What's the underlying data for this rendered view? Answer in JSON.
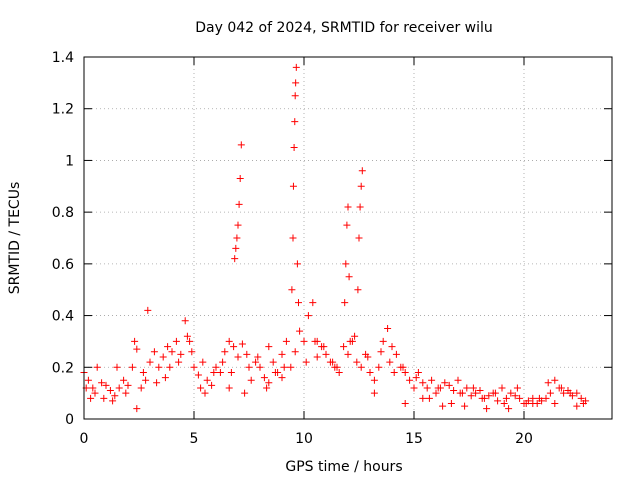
{
  "chart_data": {
    "type": "scatter",
    "title": "Day 042 of 2024, SRMTID for receiver wilu",
    "xlabel": "GPS time / hours",
    "ylabel": "SRMTID / TECUs",
    "xlim": [
      0,
      24
    ],
    "ylim": [
      0,
      1.4
    ],
    "xticks": [
      "0",
      "5",
      "10",
      "15",
      "20"
    ],
    "yticks": [
      "0",
      "0.2",
      "0.4",
      "0.6",
      "0.8",
      "1",
      "1.2",
      "1.4"
    ],
    "grid": true,
    "marker": "+",
    "color": "#ff0000",
    "series": [
      {
        "name": "SRMTID",
        "x": [
          0.0,
          0.2,
          0.4,
          0.6,
          0.8,
          1.0,
          1.2,
          1.4,
          1.6,
          1.8,
          2.0,
          2.2,
          2.4,
          2.6,
          2.8,
          3.0,
          3.2,
          3.4,
          3.6,
          3.8,
          4.0,
          4.2,
          4.4,
          4.6,
          4.8,
          5.0,
          5.2,
          5.4,
          5.6,
          5.8,
          6.0,
          6.2,
          6.4,
          6.6,
          6.8,
          7.0,
          7.2,
          7.4,
          7.6,
          7.8,
          8.0,
          8.2,
          8.4,
          8.6,
          8.8,
          9.0,
          9.2,
          9.4,
          9.6,
          9.8,
          10.0,
          10.2,
          10.4,
          10.6,
          10.8,
          11.0,
          11.2,
          11.4,
          11.6,
          11.8,
          12.0,
          12.2,
          12.4,
          12.6,
          12.8,
          13.0,
          13.2,
          13.4,
          13.6,
          13.8,
          14.0,
          14.2,
          14.4,
          14.6,
          14.8,
          15.0,
          15.2,
          15.4,
          15.6,
          15.8,
          16.0,
          16.2,
          16.4,
          16.6,
          16.8,
          17.0,
          17.2,
          17.4,
          17.6,
          17.8,
          18.0,
          18.2,
          18.4,
          18.6,
          18.8,
          19.0,
          19.2,
          19.4,
          19.6,
          19.8,
          20.0,
          20.2,
          20.4,
          20.6,
          20.8,
          21.0,
          21.2,
          21.4,
          21.6,
          21.8,
          22.0,
          22.2,
          22.4,
          22.6,
          22.8,
          6.85,
          6.9,
          6.95,
          7.0,
          7.05,
          7.1,
          7.15,
          9.45,
          9.5,
          9.52,
          9.55,
          9.58,
          9.6,
          9.62,
          9.65,
          9.7,
          9.75,
          11.85,
          11.9,
          11.95,
          12.0,
          12.05,
          12.45,
          12.5,
          12.55,
          12.6,
          12.65,
          0.3,
          1.3,
          2.4,
          2.9,
          3.7,
          4.7,
          5.5,
          6.6,
          7.3,
          8.4,
          9.0,
          10.6,
          11.3,
          12.3,
          13.2,
          13.9,
          14.6,
          15.4,
          16.3,
          17.3,
          18.3,
          19.3,
          20.4,
          21.4,
          22.4,
          0.1,
          0.5,
          0.9,
          1.5,
          1.9,
          2.3,
          2.7,
          3.3,
          3.9,
          4.3,
          4.9,
          5.3,
          5.9,
          6.3,
          6.7,
          7.5,
          7.9,
          8.3,
          8.7,
          9.1,
          10.1,
          10.5,
          10.9,
          11.5,
          12.1,
          12.9,
          13.5,
          14.1,
          14.5,
          15.1,
          15.7,
          16.1,
          16.7,
          17.1,
          17.7,
          18.1,
          18.7,
          19.1,
          19.7,
          20.1,
          20.7,
          21.1,
          21.7,
          22.1,
          22.7
        ],
        "y": [
          0.18,
          0.15,
          0.12,
          0.2,
          0.14,
          0.13,
          0.11,
          0.09,
          0.12,
          0.15,
          0.13,
          0.2,
          0.27,
          0.12,
          0.15,
          0.22,
          0.26,
          0.2,
          0.24,
          0.28,
          0.26,
          0.3,
          0.25,
          0.38,
          0.3,
          0.2,
          0.17,
          0.22,
          0.15,
          0.13,
          0.2,
          0.18,
          0.26,
          0.3,
          0.28,
          0.24,
          0.29,
          0.25,
          0.15,
          0.22,
          0.2,
          0.16,
          0.28,
          0.22,
          0.18,
          0.25,
          0.3,
          0.2,
          0.26,
          0.34,
          0.3,
          0.4,
          0.45,
          0.3,
          0.28,
          0.25,
          0.22,
          0.2,
          0.18,
          0.28,
          0.25,
          0.3,
          0.22,
          0.2,
          0.25,
          0.18,
          0.15,
          0.2,
          0.3,
          0.35,
          0.28,
          0.25,
          0.2,
          0.18,
          0.15,
          0.12,
          0.18,
          0.14,
          0.12,
          0.15,
          0.1,
          0.12,
          0.14,
          0.13,
          0.11,
          0.15,
          0.1,
          0.12,
          0.09,
          0.1,
          0.11,
          0.08,
          0.09,
          0.1,
          0.07,
          0.12,
          0.08,
          0.1,
          0.09,
          0.08,
          0.06,
          0.07,
          0.08,
          0.06,
          0.07,
          0.08,
          0.1,
          0.15,
          0.12,
          0.1,
          0.11,
          0.09,
          0.1,
          0.08,
          0.07,
          0.62,
          0.66,
          0.7,
          0.75,
          0.83,
          0.93,
          1.06,
          0.5,
          0.7,
          0.9,
          1.05,
          1.15,
          1.25,
          1.3,
          1.36,
          0.6,
          0.45,
          0.45,
          0.6,
          0.75,
          0.82,
          0.55,
          0.5,
          0.7,
          0.82,
          0.9,
          0.96,
          0.08,
          0.07,
          0.04,
          0.42,
          0.16,
          0.32,
          0.1,
          0.12,
          0.1,
          0.14,
          0.16,
          0.24,
          0.22,
          0.32,
          0.1,
          0.22,
          0.06,
          0.08,
          0.05,
          0.05,
          0.04,
          0.04,
          0.06,
          0.06,
          0.05,
          0.12,
          0.1,
          0.08,
          0.2,
          0.1,
          0.3,
          0.18,
          0.14,
          0.2,
          0.22,
          0.26,
          0.12,
          0.18,
          0.22,
          0.18,
          0.2,
          0.24,
          0.12,
          0.18,
          0.2,
          0.22,
          0.3,
          0.28,
          0.2,
          0.3,
          0.24,
          0.26,
          0.18,
          0.2,
          0.16,
          0.08,
          0.12,
          0.06,
          0.1,
          0.12,
          0.08,
          0.1,
          0.06,
          0.12,
          0.06,
          0.08,
          0.14,
          0.12,
          0.1,
          0.06
        ]
      }
    ]
  }
}
